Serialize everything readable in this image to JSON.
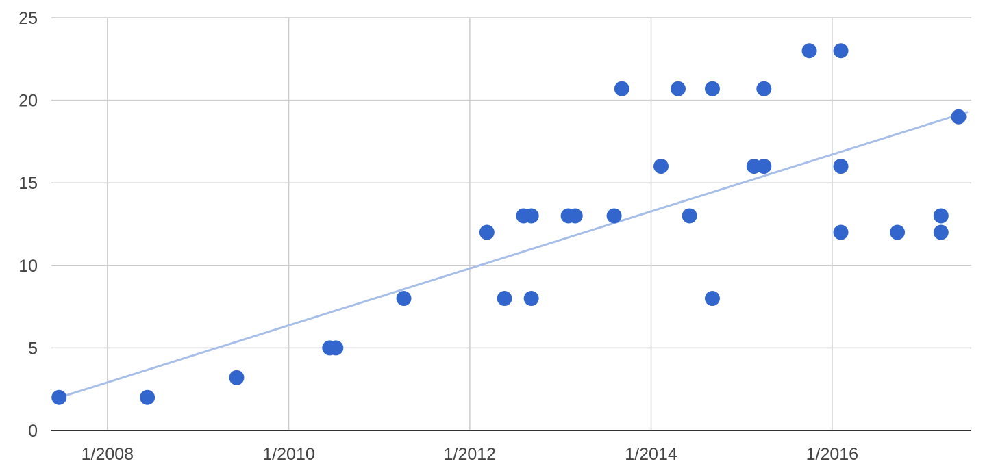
{
  "chart_data": {
    "type": "scatter",
    "title": "",
    "xlabel": "",
    "ylabel": "",
    "x_axis": {
      "kind": "date",
      "range": [
        "2007-05-20",
        "2017-07-15"
      ],
      "tick_values": [
        "2008-01-01",
        "2010-01-01",
        "2012-01-01",
        "2014-01-01",
        "2016-01-01"
      ],
      "tick_labels": [
        "1/2008",
        "1/2010",
        "1/2012",
        "1/2014",
        "1/2016"
      ]
    },
    "y_axis": {
      "range": [
        0,
        25
      ],
      "ticks": [
        0,
        5,
        10,
        15,
        20,
        25
      ],
      "tick_labels": [
        "0",
        "5",
        "10",
        "15",
        "20",
        "25"
      ]
    },
    "grid": true,
    "legend": "none",
    "series": [
      {
        "color": "#3366cc",
        "points": [
          {
            "x": "2007-06-20",
            "y": 2
          },
          {
            "x": "2008-06-10",
            "y": 2
          },
          {
            "x": "2009-06-05",
            "y": 3.2
          },
          {
            "x": "2010-06-15",
            "y": 5
          },
          {
            "x": "2010-07-10",
            "y": 5
          },
          {
            "x": "2011-04-10",
            "y": 8
          },
          {
            "x": "2012-03-10",
            "y": 12
          },
          {
            "x": "2012-05-20",
            "y": 8
          },
          {
            "x": "2012-08-05",
            "y": 13
          },
          {
            "x": "2012-09-05",
            "y": 13
          },
          {
            "x": "2012-09-05",
            "y": 8
          },
          {
            "x": "2013-02-01",
            "y": 13
          },
          {
            "x": "2013-03-01",
            "y": 13
          },
          {
            "x": "2013-08-05",
            "y": 13
          },
          {
            "x": "2013-09-05",
            "y": 20.7
          },
          {
            "x": "2014-02-10",
            "y": 16
          },
          {
            "x": "2014-04-20",
            "y": 20.7
          },
          {
            "x": "2014-06-05",
            "y": 13
          },
          {
            "x": "2014-09-05",
            "y": 20.7
          },
          {
            "x": "2014-09-05",
            "y": 8
          },
          {
            "x": "2015-02-20",
            "y": 16
          },
          {
            "x": "2015-04-01",
            "y": 16
          },
          {
            "x": "2015-04-01",
            "y": 20.7
          },
          {
            "x": "2015-10-01",
            "y": 23
          },
          {
            "x": "2016-02-05",
            "y": 23
          },
          {
            "x": "2016-02-05",
            "y": 16
          },
          {
            "x": "2016-02-05",
            "y": 12
          },
          {
            "x": "2016-09-20",
            "y": 12
          },
          {
            "x": "2017-03-15",
            "y": 13
          },
          {
            "x": "2017-03-15",
            "y": 12
          },
          {
            "x": "2017-05-25",
            "y": 19
          }
        ]
      }
    ],
    "trendline": {
      "type": "linear",
      "color": "#a7bfe8",
      "points": [
        {
          "x": "2007-06-01",
          "y": 1.9
        },
        {
          "x": "2017-07-01",
          "y": 19.3
        }
      ]
    }
  }
}
